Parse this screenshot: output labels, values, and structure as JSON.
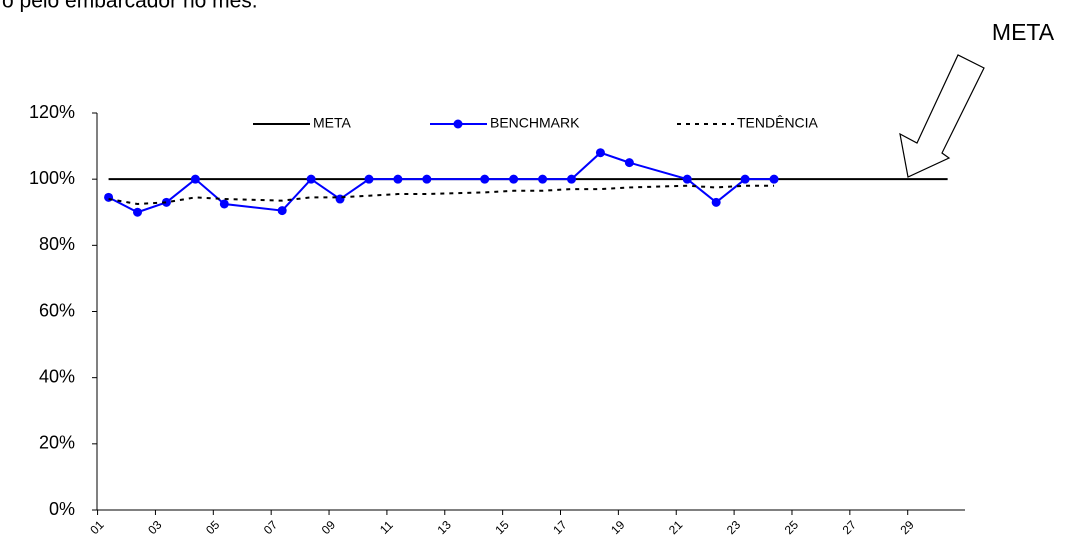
{
  "chart_data": {
    "type": "line",
    "title": "o pelo embarcador no mês.",
    "annotation": "META",
    "xlim": [
      0.6,
      30.6
    ],
    "xticks": [
      {
        "value": 1,
        "label": "01"
      },
      {
        "value": 3,
        "label": "03"
      },
      {
        "value": 5,
        "label": "05"
      },
      {
        "value": 7,
        "label": "07"
      },
      {
        "value": 9,
        "label": "09"
      },
      {
        "value": 11,
        "label": "11"
      },
      {
        "value": 13,
        "label": "13"
      },
      {
        "value": 15,
        "label": "15"
      },
      {
        "value": 17,
        "label": "17"
      },
      {
        "value": 19,
        "label": "19"
      },
      {
        "value": 21,
        "label": "21"
      },
      {
        "value": 23,
        "label": "23"
      },
      {
        "value": 25,
        "label": "25"
      },
      {
        "value": 27,
        "label": "27"
      },
      {
        "value": 29,
        "label": "29"
      }
    ],
    "ylim": [
      0,
      120
    ],
    "yticks": [
      {
        "value": 0,
        "label": "0%"
      },
      {
        "value": 20,
        "label": "20%"
      },
      {
        "value": 40,
        "label": "40%"
      },
      {
        "value": 60,
        "label": "60%"
      },
      {
        "value": 80,
        "label": "80%"
      },
      {
        "value": 100,
        "label": "100%"
      },
      {
        "value": 120,
        "label": "120%"
      }
    ],
    "series": [
      {
        "name": "META",
        "color": "#000000",
        "style": "solid",
        "marker": false,
        "x": [
          1,
          30
        ],
        "values": [
          100,
          100
        ]
      },
      {
        "name": "BENCHMARK",
        "color": "#0000ff",
        "style": "solid",
        "marker": true,
        "x": [
          1,
          2,
          3,
          4,
          5,
          7,
          8,
          9,
          10,
          11,
          12,
          14,
          15,
          16,
          17,
          18,
          19,
          21,
          22,
          23,
          24
        ],
        "values": [
          94.5,
          90,
          93,
          100,
          92.5,
          90.5,
          100,
          94,
          100,
          100,
          100,
          100,
          100,
          100,
          100,
          108,
          105,
          100,
          93,
          100,
          100
        ]
      },
      {
        "name": "TENDÊNCIA",
        "color": "#000000",
        "style": "dotted",
        "marker": false,
        "x": [
          1,
          2,
          3,
          4,
          5,
          7,
          8,
          9,
          10,
          11,
          12,
          14,
          15,
          16,
          17,
          18,
          19,
          21,
          22,
          23,
          24
        ],
        "values": [
          94,
          92.5,
          93,
          94.5,
          94,
          93.5,
          94.5,
          94.5,
          95,
          95.5,
          95.5,
          96,
          96.5,
          96.5,
          97,
          97,
          97.5,
          98,
          97.5,
          98,
          98
        ]
      }
    ]
  }
}
